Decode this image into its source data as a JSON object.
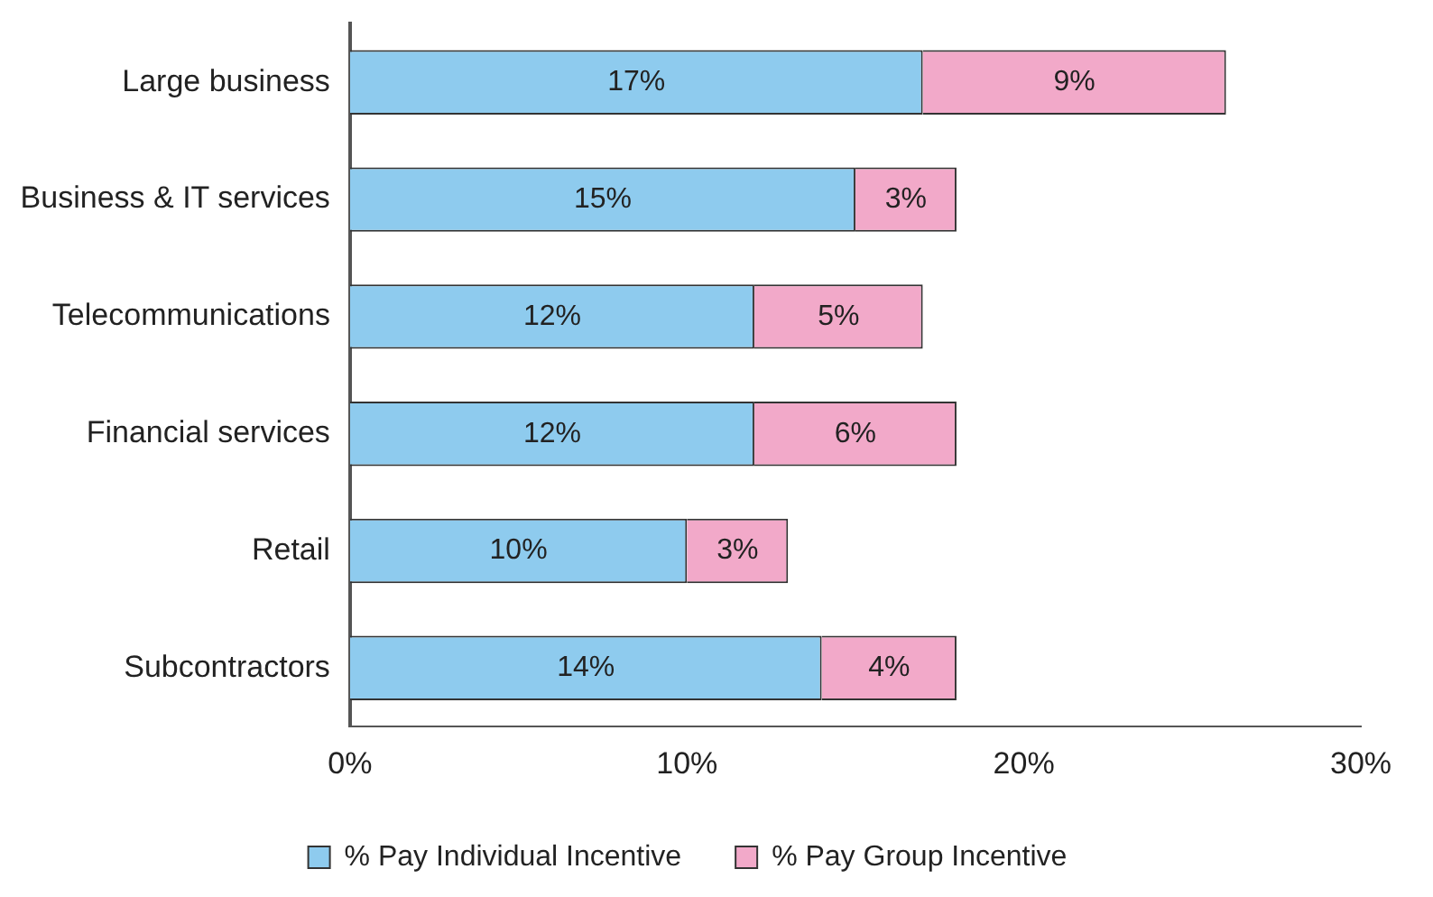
{
  "chart_data": {
    "type": "bar",
    "orientation": "horizontal",
    "stacked": true,
    "categories": [
      "Large business",
      "Business & IT services",
      "Telecommunications",
      "Financial services",
      "Retail",
      "Subcontractors"
    ],
    "series": [
      {
        "name": "% Pay Individual Incentive",
        "color": "#8ecbee",
        "values": [
          17,
          15,
          12,
          12,
          10,
          14
        ],
        "value_labels": [
          "17%",
          "15%",
          "12%",
          "12%",
          "10%",
          "14%"
        ]
      },
      {
        "name": "% Pay Group Incentive",
        "color": "#f2a9c9",
        "values": [
          9,
          3,
          5,
          6,
          3,
          4
        ],
        "value_labels": [
          "9%",
          "3%",
          "5%",
          "6%",
          "3%",
          "4%"
        ]
      }
    ],
    "xlim": [
      0,
      30
    ],
    "xticks": [
      {
        "value": 0,
        "label": "0%"
      },
      {
        "value": 10,
        "label": "10%"
      },
      {
        "value": 20,
        "label": "20%"
      },
      {
        "value": 30,
        "label": "30%"
      }
    ],
    "grid": false,
    "legend": "bottom"
  }
}
